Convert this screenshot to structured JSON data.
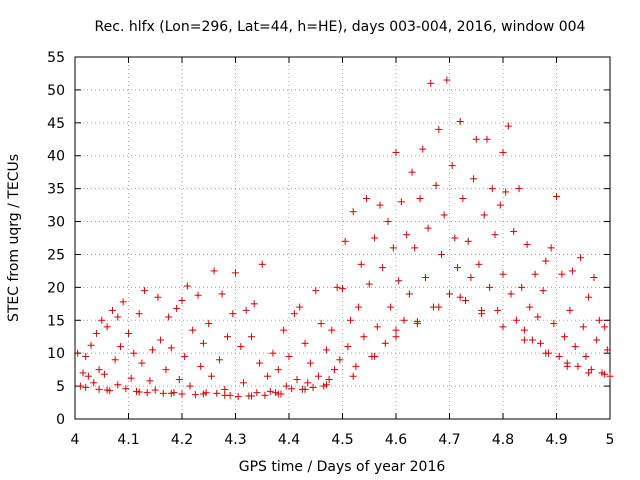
{
  "chart_data": {
    "type": "scatter",
    "title": "Rec. hlfx (Lon=296, Lat=44, h=HE), days 003-004, 2016, window 004",
    "xlabel": "GPS time / Days of year 2016",
    "ylabel": "STEC from uqrg / TECUs",
    "xlim": [
      4,
      5
    ],
    "ylim": [
      0,
      55
    ],
    "xticks": [
      4,
      4.1,
      4.2,
      4.3,
      4.4,
      4.5,
      4.6,
      4.7,
      4.8,
      4.9,
      5
    ],
    "xtick_labels": [
      "4",
      "4.1",
      "4.2",
      "4.3",
      "4.4",
      "4.5",
      "4.6",
      "4.7",
      "4.8",
      "4.9",
      "5"
    ],
    "yticks": [
      0,
      5,
      10,
      15,
      20,
      25,
      30,
      35,
      40,
      45,
      50,
      55
    ],
    "ytick_labels": [
      "0",
      "5",
      "10",
      "15",
      "20",
      "25",
      "30",
      "35",
      "40",
      "45",
      "50",
      "55"
    ],
    "grid": true,
    "marker": "+",
    "color": "#d40000",
    "series": [
      {
        "name": "STEC",
        "points": [
          [
            4.005,
            10.0
          ],
          [
            4.01,
            5.0
          ],
          [
            4.015,
            7.0
          ],
          [
            4.02,
            4.8
          ],
          [
            4.025,
            6.5
          ],
          [
            4.03,
            11.2
          ],
          [
            4.035,
            5.5
          ],
          [
            4.04,
            13.0
          ],
          [
            4.045,
            4.5
          ],
          [
            4.045,
            7.5
          ],
          [
            4.05,
            15.0
          ],
          [
            4.055,
            6.8
          ],
          [
            4.06,
            14.0
          ],
          [
            4.065,
            4.3
          ],
          [
            4.07,
            16.5
          ],
          [
            4.075,
            9.0
          ],
          [
            4.08,
            5.2
          ],
          [
            4.08,
            15.5
          ],
          [
            4.085,
            11.0
          ],
          [
            4.09,
            17.8
          ],
          [
            4.095,
            4.6
          ],
          [
            4.1,
            13.0
          ],
          [
            4.105,
            6.2
          ],
          [
            4.11,
            10.0
          ],
          [
            4.115,
            4.2
          ],
          [
            4.12,
            16.0
          ],
          [
            4.125,
            8.5
          ],
          [
            4.13,
            19.5
          ],
          [
            4.135,
            4.0
          ],
          [
            4.14,
            5.8
          ],
          [
            4.145,
            10.5
          ],
          [
            4.15,
            4.4
          ],
          [
            4.155,
            18.5
          ],
          [
            4.16,
            12.0
          ],
          [
            4.165,
            3.9
          ],
          [
            4.17,
            7.5
          ],
          [
            4.175,
            15.5
          ],
          [
            4.18,
            10.8
          ],
          [
            4.185,
            4.0
          ],
          [
            4.19,
            16.8
          ],
          [
            4.195,
            6.0
          ],
          [
            4.2,
            18.0
          ],
          [
            4.2,
            3.8
          ],
          [
            4.205,
            9.5
          ],
          [
            4.21,
            20.2
          ],
          [
            4.215,
            5.0
          ],
          [
            4.22,
            13.5
          ],
          [
            4.225,
            3.7
          ],
          [
            4.23,
            18.8
          ],
          [
            4.235,
            8.0
          ],
          [
            4.24,
            11.5
          ],
          [
            4.245,
            4.0
          ],
          [
            4.25,
            14.5
          ],
          [
            4.255,
            6.5
          ],
          [
            4.26,
            22.5
          ],
          [
            4.265,
            3.9
          ],
          [
            4.27,
            9.0
          ],
          [
            4.275,
            19.0
          ],
          [
            4.28,
            4.5
          ],
          [
            4.285,
            12.5
          ],
          [
            4.29,
            3.6
          ],
          [
            4.295,
            16.0
          ],
          [
            4.3,
            22.2
          ],
          [
            4.305,
            3.4
          ],
          [
            4.31,
            11.0
          ],
          [
            4.315,
            5.5
          ],
          [
            4.32,
            16.5
          ],
          [
            4.325,
            3.5
          ],
          [
            4.33,
            12.5
          ],
          [
            4.335,
            17.5
          ],
          [
            4.34,
            4.0
          ],
          [
            4.345,
            8.5
          ],
          [
            4.35,
            23.5
          ],
          [
            4.355,
            3.6
          ],
          [
            4.36,
            6.5
          ],
          [
            4.365,
            4.2
          ],
          [
            4.37,
            10.0
          ],
          [
            4.375,
            4.0
          ],
          [
            4.38,
            7.5
          ],
          [
            4.385,
            3.8
          ],
          [
            4.39,
            13.5
          ],
          [
            4.395,
            5.0
          ],
          [
            4.4,
            9.5
          ],
          [
            4.405,
            4.6
          ],
          [
            4.41,
            16.0
          ],
          [
            4.415,
            6.0
          ],
          [
            4.42,
            17.0
          ],
          [
            4.425,
            4.5
          ],
          [
            4.43,
            11.5
          ],
          [
            4.435,
            5.5
          ],
          [
            4.44,
            8.5
          ],
          [
            4.445,
            4.8
          ],
          [
            4.45,
            19.5
          ],
          [
            4.455,
            6.5
          ],
          [
            4.46,
            14.5
          ],
          [
            4.465,
            5.0
          ],
          [
            4.47,
            10.5
          ],
          [
            4.475,
            6.0
          ],
          [
            4.48,
            13.5
          ],
          [
            4.485,
            7.5
          ],
          [
            4.49,
            20.0
          ],
          [
            4.495,
            9.0
          ],
          [
            4.5,
            19.8
          ],
          [
            4.505,
            27.0
          ],
          [
            4.51,
            11.0
          ],
          [
            4.515,
            15.0
          ],
          [
            4.52,
            31.5
          ],
          [
            4.525,
            8.0
          ],
          [
            4.53,
            17.0
          ],
          [
            4.535,
            23.5
          ],
          [
            4.54,
            12.5
          ],
          [
            4.545,
            33.5
          ],
          [
            4.55,
            20.5
          ],
          [
            4.555,
            9.5
          ],
          [
            4.56,
            27.5
          ],
          [
            4.565,
            14.0
          ],
          [
            4.57,
            32.5
          ],
          [
            4.575,
            23.0
          ],
          [
            4.58,
            11.5
          ],
          [
            4.585,
            30.0
          ],
          [
            4.59,
            17.0
          ],
          [
            4.595,
            26.0
          ],
          [
            4.6,
            40.5
          ],
          [
            4.6,
            13.5
          ],
          [
            4.605,
            21.0
          ],
          [
            4.61,
            33.0
          ],
          [
            4.615,
            15.0
          ],
          [
            4.62,
            28.0
          ],
          [
            4.625,
            19.0
          ],
          [
            4.63,
            37.5
          ],
          [
            4.635,
            26.0
          ],
          [
            4.64,
            14.5
          ],
          [
            4.645,
            33.5
          ],
          [
            4.65,
            41.0
          ],
          [
            4.655,
            21.5
          ],
          [
            4.66,
            29.0
          ],
          [
            4.665,
            51.0
          ],
          [
            4.67,
            17.0
          ],
          [
            4.675,
            35.5
          ],
          [
            4.68,
            44.0
          ],
          [
            4.685,
            25.0
          ],
          [
            4.69,
            31.0
          ],
          [
            4.695,
            51.5
          ],
          [
            4.7,
            19.0
          ],
          [
            4.705,
            38.5
          ],
          [
            4.71,
            27.5
          ],
          [
            4.715,
            23.0
          ],
          [
            4.72,
            45.2
          ],
          [
            4.725,
            33.5
          ],
          [
            4.73,
            18.0
          ],
          [
            4.735,
            27.0
          ],
          [
            4.74,
            21.5
          ],
          [
            4.745,
            36.5
          ],
          [
            4.75,
            42.5
          ],
          [
            4.755,
            23.5
          ],
          [
            4.76,
            16.5
          ],
          [
            4.765,
            31.0
          ],
          [
            4.77,
            42.5
          ],
          [
            4.775,
            20.0
          ],
          [
            4.78,
            35.0
          ],
          [
            4.785,
            28.0
          ],
          [
            4.79,
            16.5
          ],
          [
            4.795,
            32.5
          ],
          [
            4.8,
            40.5
          ],
          [
            4.8,
            22.0
          ],
          [
            4.805,
            34.5
          ],
          [
            4.81,
            44.5
          ],
          [
            4.815,
            19.0
          ],
          [
            4.82,
            28.5
          ],
          [
            4.825,
            15.0
          ],
          [
            4.83,
            35.0
          ],
          [
            4.835,
            20.0
          ],
          [
            4.84,
            13.5
          ],
          [
            4.845,
            26.5
          ],
          [
            4.85,
            17.0
          ],
          [
            4.855,
            12.0
          ],
          [
            4.86,
            22.0
          ],
          [
            4.865,
            15.5
          ],
          [
            4.87,
            11.5
          ],
          [
            4.875,
            19.5
          ],
          [
            4.88,
            24.0
          ],
          [
            4.885,
            10.0
          ],
          [
            4.89,
            26.0
          ],
          [
            4.895,
            14.5
          ],
          [
            4.9,
            33.8
          ],
          [
            4.905,
            9.5
          ],
          [
            4.91,
            22.0
          ],
          [
            4.915,
            12.5
          ],
          [
            4.92,
            8.5
          ],
          [
            4.925,
            16.5
          ],
          [
            4.93,
            22.5
          ],
          [
            4.935,
            11.0
          ],
          [
            4.94,
            8.0
          ],
          [
            4.945,
            24.5
          ],
          [
            4.95,
            14.0
          ],
          [
            4.955,
            9.5
          ],
          [
            4.96,
            18.5
          ],
          [
            4.965,
            7.5
          ],
          [
            4.97,
            21.5
          ],
          [
            4.975,
            12.0
          ],
          [
            4.98,
            15.0
          ],
          [
            4.985,
            7.0
          ],
          [
            4.99,
            14.0
          ],
          [
            4.995,
            10.5
          ],
          [
            5.0,
            6.5
          ],
          [
            4.02,
            9.5
          ],
          [
            4.06,
            4.4
          ],
          [
            4.12,
            4.1
          ],
          [
            4.18,
            3.9
          ],
          [
            4.24,
            3.8
          ],
          [
            4.28,
            3.6
          ],
          [
            4.33,
            3.5
          ],
          [
            4.38,
            3.8
          ],
          [
            4.43,
            4.5
          ],
          [
            4.47,
            5.2
          ],
          [
            4.52,
            6.5
          ],
          [
            4.56,
            9.5
          ],
          [
            4.6,
            12.5
          ],
          [
            4.64,
            14.8
          ],
          [
            4.68,
            17.0
          ],
          [
            4.72,
            18.5
          ],
          [
            4.76,
            16.0
          ],
          [
            4.8,
            14.0
          ],
          [
            4.84,
            12.0
          ],
          [
            4.88,
            10.0
          ],
          [
            4.92,
            8.0
          ],
          [
            4.96,
            7.0
          ],
          [
            4.99,
            6.8
          ]
        ]
      }
    ]
  }
}
